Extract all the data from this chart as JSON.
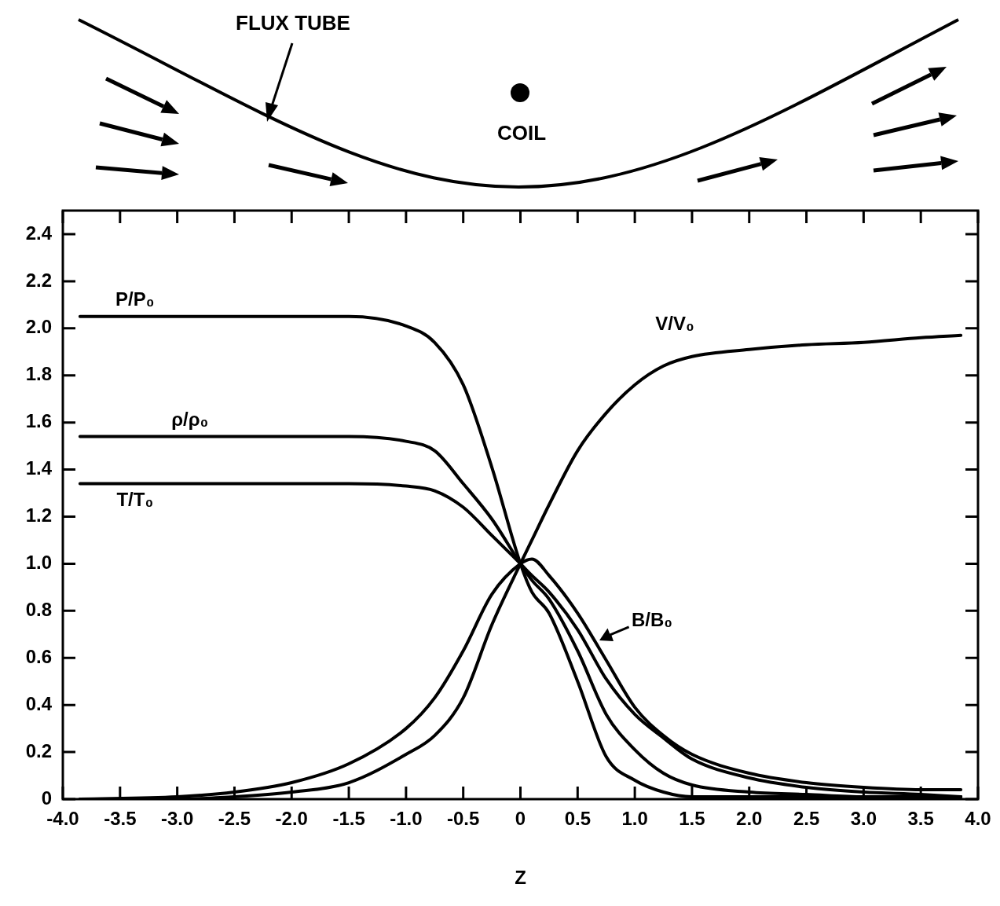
{
  "chart_data": {
    "type": "line",
    "xlabel": "Z",
    "annotations": [
      "FLUX TUBE",
      "COIL"
    ],
    "x": [
      -3.85,
      -3,
      -2.5,
      -2,
      -1.5,
      -1,
      -0.75,
      -0.5,
      -0.25,
      0,
      0.1,
      0.25,
      0.5,
      0.75,
      1,
      1.25,
      1.5,
      2,
      2.5,
      3,
      3.5,
      3.85
    ],
    "series": [
      {
        "name": "P/P₀",
        "color": "#000000",
        "values": [
          2.05,
          2.05,
          2.05,
          2.05,
          2.05,
          2.01,
          1.94,
          1.76,
          1.41,
          1.0,
          0.88,
          0.79,
          0.5,
          0.18,
          0.08,
          0.03,
          0.01,
          0.01,
          0.01,
          0.01,
          0.01,
          0.01
        ]
      },
      {
        "name": "ρ/ρ₀",
        "color": "#000000",
        "values": [
          1.54,
          1.54,
          1.54,
          1.54,
          1.54,
          1.52,
          1.48,
          1.34,
          1.19,
          1.0,
          0.93,
          0.85,
          0.63,
          0.36,
          0.21,
          0.11,
          0.06,
          0.03,
          0.02,
          0.01,
          0.01,
          0.01
        ]
      },
      {
        "name": "T/T₀",
        "color": "#000000",
        "values": [
          1.34,
          1.34,
          1.34,
          1.34,
          1.34,
          1.33,
          1.31,
          1.24,
          1.12,
          1.0,
          0.95,
          0.88,
          0.72,
          0.51,
          0.36,
          0.26,
          0.17,
          0.09,
          0.05,
          0.03,
          0.02,
          0.01
        ]
      },
      {
        "name": "V/V₀",
        "color": "#000000",
        "values": [
          0.0,
          0.0,
          0.01,
          0.03,
          0.07,
          0.19,
          0.27,
          0.43,
          0.74,
          1.0,
          1.1,
          1.25,
          1.48,
          1.64,
          1.76,
          1.84,
          1.88,
          1.91,
          1.93,
          1.94,
          1.96,
          1.97
        ]
      },
      {
        "name": "B/B₀",
        "color": "#000000",
        "values": [
          0.0,
          0.01,
          0.03,
          0.07,
          0.15,
          0.3,
          0.43,
          0.63,
          0.87,
          1.0,
          1.02,
          0.95,
          0.79,
          0.59,
          0.39,
          0.27,
          0.19,
          0.11,
          0.07,
          0.05,
          0.04,
          0.04
        ]
      }
    ],
    "xlim": [
      -4,
      4
    ],
    "ylim": [
      0,
      2.5
    ],
    "xticks": [
      {
        "value": -4,
        "label": "-4.0"
      },
      -3.5,
      {
        "value": -3,
        "label": "-3.0"
      },
      -2.5,
      {
        "value": -2,
        "label": "-2.0"
      },
      -1.5,
      {
        "value": -1,
        "label": "-1.0"
      },
      -0.5,
      0,
      0.5,
      {
        "value": 1,
        "label": "1.0"
      },
      1.5,
      {
        "value": 2,
        "label": "2.0"
      },
      2.5,
      {
        "value": 3,
        "label": "3.0"
      },
      3.5,
      {
        "value": 4,
        "label": "4.0"
      }
    ],
    "yticks": [
      0,
      0.2,
      0.4,
      0.6,
      0.8,
      {
        "value": 1,
        "label": "1.0"
      },
      1.2,
      1.4,
      1.6,
      1.8,
      {
        "value": 2,
        "label": "2.0"
      },
      2.2,
      2.4
    ],
    "grid": false,
    "legend": false,
    "marker": "none",
    "line_style": "solid"
  }
}
